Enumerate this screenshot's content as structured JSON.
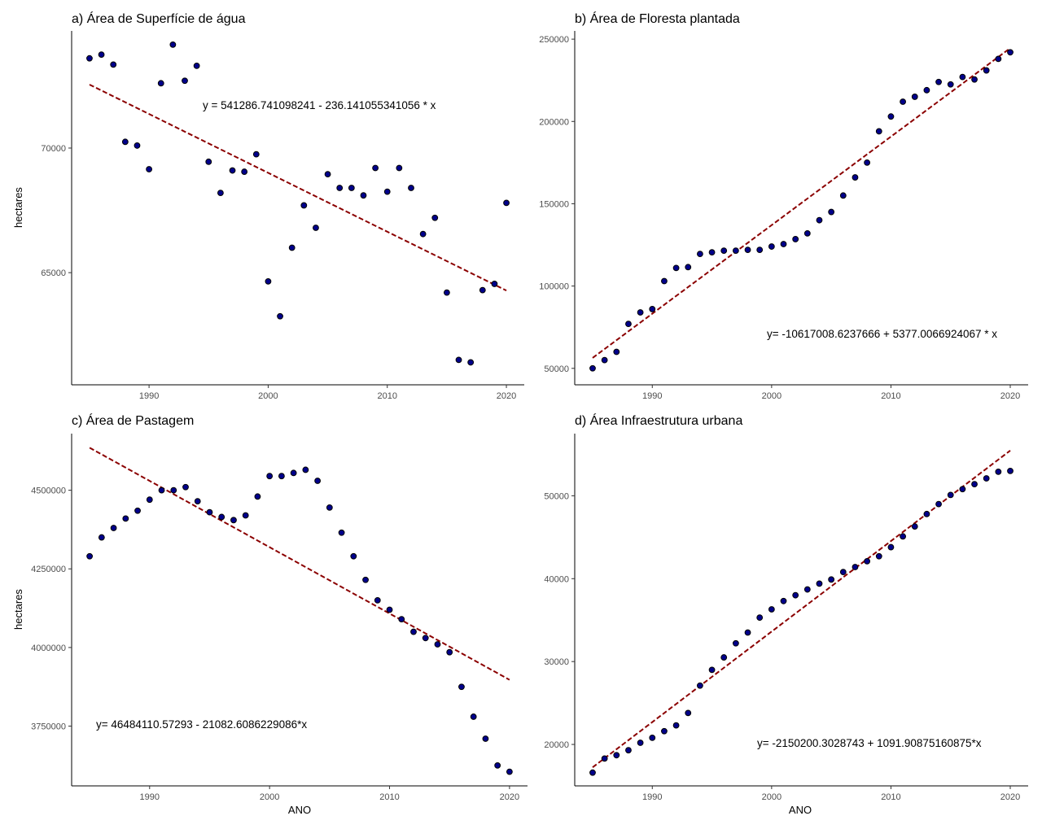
{
  "colors": {
    "point_fill": "#00008b",
    "point_stroke": "#000000",
    "trend": "#8b0000",
    "axis": "#000000"
  },
  "chart_data": [
    {
      "type": "scatter",
      "title": "a) Área de Superfície de água",
      "xlabel": "",
      "ylabel": "hectares",
      "xlim": [
        1983.5,
        2021.5
      ],
      "ylim": [
        60500,
        74700
      ],
      "xticks": [
        1990,
        2000,
        2010,
        2020
      ],
      "yticks": [
        65000,
        70000
      ],
      "ytick_labels": [
        "65000",
        "70000"
      ],
      "x": [
        1985,
        1986,
        1987,
        1988,
        1989,
        1990,
        1991,
        1992,
        1993,
        1994,
        1995,
        1996,
        1997,
        1998,
        1999,
        2000,
        2001,
        2002,
        2003,
        2004,
        2005,
        2006,
        2007,
        2008,
        2009,
        2010,
        2011,
        2012,
        2013,
        2014,
        2015,
        2016,
        2017,
        2018,
        2019,
        2020
      ],
      "y": [
        73600,
        73750,
        73350,
        70250,
        70100,
        69150,
        72600,
        74150,
        72700,
        73300,
        69450,
        68200,
        69100,
        69050,
        69750,
        64650,
        63250,
        66000,
        67700,
        66800,
        68950,
        68400,
        68400,
        68100,
        69200,
        68250,
        69200,
        68400,
        66550,
        67200,
        64200,
        61500,
        61400,
        64300,
        64550,
        67800
      ],
      "trend": {
        "intercept": 541286.741098241,
        "slope": -236.141055341056
      },
      "equation": "y = 541286.741098241 - 236.141055341056 * x"
    },
    {
      "type": "scatter",
      "title": "b) Área de  Floresta plantada",
      "xlabel": "",
      "ylabel": "",
      "xlim": [
        1983.5,
        2021.5
      ],
      "ylim": [
        40000,
        255000
      ],
      "xticks": [
        1990,
        2000,
        2010,
        2020
      ],
      "yticks": [
        50000,
        100000,
        150000,
        200000,
        250000
      ],
      "ytick_labels": [
        "50000",
        "100000",
        "150000",
        "200000",
        "250000"
      ],
      "x": [
        1985,
        1986,
        1987,
        1988,
        1989,
        1990,
        1991,
        1992,
        1993,
        1994,
        1995,
        1996,
        1997,
        1998,
        1999,
        2000,
        2001,
        2002,
        2003,
        2004,
        2005,
        2006,
        2007,
        2008,
        2009,
        2010,
        2011,
        2012,
        2013,
        2014,
        2015,
        2016,
        2017,
        2018,
        2019,
        2020
      ],
      "y": [
        50000,
        55000,
        60000,
        77000,
        84000,
        86000,
        103000,
        111000,
        111500,
        119500,
        120500,
        121500,
        121500,
        122000,
        122000,
        124000,
        125500,
        128500,
        132000,
        140000,
        145000,
        155000,
        166000,
        175000,
        194000,
        203000,
        212000,
        215000,
        219000,
        224000,
        222500,
        227000,
        225500,
        231000,
        238000,
        242000
      ],
      "trend": {
        "intercept": -10617008.6237666,
        "slope": 5377.0066924067
      },
      "equation": "y= -10617008.6237666 + 5377.0066924067 * x"
    },
    {
      "type": "scatter",
      "title": "c) Área de  Pastagem",
      "xlabel": "ANO",
      "ylabel": "hectares",
      "xlim": [
        1983.5,
        2021.5
      ],
      "ylim": [
        3560000,
        4680000
      ],
      "xticks": [
        1990,
        2000,
        2010,
        2020
      ],
      "yticks": [
        3750000,
        4000000,
        4250000,
        4500000
      ],
      "ytick_labels": [
        "3750000",
        "4000000",
        "4250000",
        "4500000"
      ],
      "x": [
        1985,
        1986,
        1987,
        1988,
        1989,
        1990,
        1991,
        1992,
        1993,
        1994,
        1995,
        1996,
        1997,
        1998,
        1999,
        2000,
        2001,
        2002,
        2003,
        2004,
        2005,
        2006,
        2007,
        2008,
        2009,
        2010,
        2011,
        2012,
        2013,
        2014,
        2015,
        2016,
        2017,
        2018,
        2019,
        2020
      ],
      "y": [
        4290000,
        4350000,
        4380000,
        4410000,
        4435000,
        4470000,
        4500000,
        4500000,
        4510000,
        4465000,
        4430000,
        4415000,
        4405000,
        4420000,
        4480000,
        4545000,
        4545000,
        4555000,
        4565000,
        4530000,
        4445000,
        4365000,
        4290000,
        4215000,
        4150000,
        4120000,
        4090000,
        4050000,
        4030000,
        4010000,
        3985000,
        3875000,
        3780000,
        3710000,
        3625000,
        3605000
      ],
      "trend": {
        "intercept": 46484110.57293,
        "slope": -21082.6086229086
      },
      "equation": "y= 46484110.57293 - 21082.6086229086*x"
    },
    {
      "type": "scatter",
      "title": "d) Área  Infraestrutura urbana",
      "xlabel": "ANO",
      "ylabel": "",
      "xlim": [
        1983.5,
        2021.5
      ],
      "ylim": [
        15000,
        57500
      ],
      "xticks": [
        1990,
        2000,
        2010,
        2020
      ],
      "yticks": [
        20000,
        30000,
        40000,
        50000
      ],
      "ytick_labels": [
        "20000",
        "30000",
        "40000",
        "50000"
      ],
      "x": [
        1985,
        1986,
        1987,
        1988,
        1989,
        1990,
        1991,
        1992,
        1993,
        1994,
        1995,
        1996,
        1997,
        1998,
        1999,
        2000,
        2001,
        2002,
        2003,
        2004,
        2005,
        2006,
        2007,
        2008,
        2009,
        2010,
        2011,
        2012,
        2013,
        2014,
        2015,
        2016,
        2017,
        2018,
        2019,
        2020
      ],
      "y": [
        16600,
        18300,
        18700,
        19300,
        20200,
        20800,
        21600,
        22300,
        23800,
        27100,
        29000,
        30500,
        32200,
        33500,
        35300,
        36300,
        37300,
        38000,
        38700,
        39400,
        39900,
        40800,
        41400,
        42100,
        42700,
        43800,
        45100,
        46300,
        47800,
        49000,
        50100,
        50800,
        51400,
        52100,
        52900,
        53000
      ],
      "trend": {
        "intercept": -2150200.3028743,
        "slope": 1091.90875160875
      },
      "equation": "y= -2150200.3028743 + 1091.90875160875*x"
    }
  ]
}
